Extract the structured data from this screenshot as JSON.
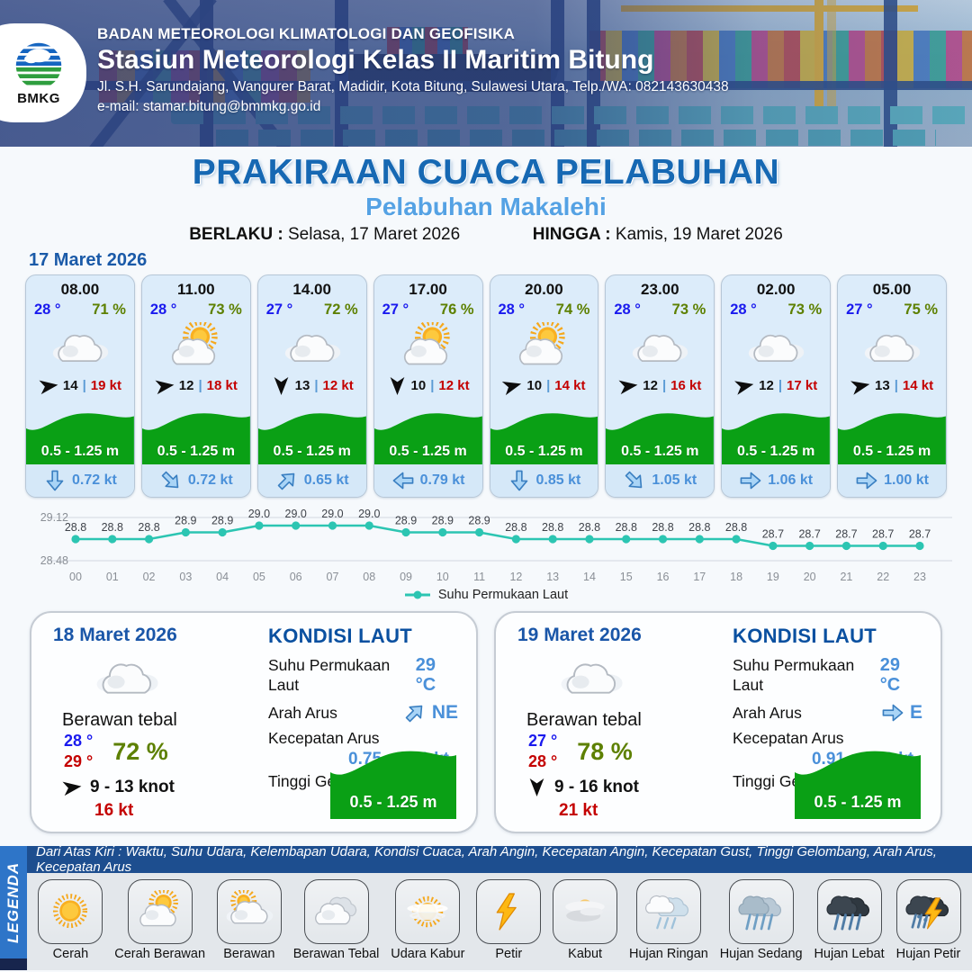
{
  "header": {
    "agency": "BADAN METEOROLOGI KLIMATOLOGI DAN GEOFISIKA",
    "station": "Stasiun Meteorologi Kelas II Maritim Bitung",
    "address": "Jl. S.H. Sarundajang, Wangurer Barat, Madidir, Kota Bitung, Sulawesi Utara, Telp./WA: 082143630438",
    "email": "e-mail: stamar.bitung@bmmkg.go.id",
    "logo_text": "BMKG"
  },
  "title": {
    "main": "PRAKIRAAN CUACA PELABUHAN",
    "subtitle": "Pelabuhan Makalehi",
    "berlaku_label": "BERLAKU :",
    "berlaku_value": "Selasa, 17 Maret 2026",
    "hingga_label": "HINGGA :",
    "hingga_value": "Kamis, 19 Maret 2026"
  },
  "forecast_date": "17 Maret 2026",
  "ui": {
    "divider": "|"
  },
  "hourly": [
    {
      "time": "08.00",
      "temp": "28 °",
      "humidity": "71 %",
      "weather": "cloud",
      "wind_speed": "14",
      "wind_gust": "19 kt",
      "wind_dir_deg": -8,
      "wave": "0.5 - 1.25 m",
      "current_speed": "0.72 kt",
      "current_dir_deg": 90
    },
    {
      "time": "11.00",
      "temp": "28 °",
      "humidity": "73 %",
      "weather": "cerah-berawan",
      "wind_speed": "12",
      "wind_gust": "18 kt",
      "wind_dir_deg": -8,
      "wave": "0.5 - 1.25 m",
      "current_speed": "0.72 kt",
      "current_dir_deg": 45
    },
    {
      "time": "14.00",
      "temp": "27 °",
      "humidity": "72 %",
      "weather": "cloud",
      "wind_speed": "13",
      "wind_gust": "12 kt",
      "wind_dir_deg": 90,
      "wave": "0.5 - 1.25 m",
      "current_speed": "0.65 kt",
      "current_dir_deg": -45
    },
    {
      "time": "17.00",
      "temp": "27 °",
      "humidity": "76 %",
      "weather": "cerah-berawan",
      "wind_speed": "10",
      "wind_gust": "12 kt",
      "wind_dir_deg": 90,
      "wave": "0.5 - 1.25 m",
      "current_speed": "0.79 kt",
      "current_dir_deg": 180
    },
    {
      "time": "20.00",
      "temp": "28 °",
      "humidity": "74 %",
      "weather": "cerah-berawan",
      "wind_speed": "10",
      "wind_gust": "14 kt",
      "wind_dir_deg": -15,
      "wave": "0.5 - 1.25 m",
      "current_speed": "0.85 kt",
      "current_dir_deg": 90
    },
    {
      "time": "23.00",
      "temp": "28 °",
      "humidity": "73 %",
      "weather": "cloud",
      "wind_speed": "12",
      "wind_gust": "16 kt",
      "wind_dir_deg": -8,
      "wave": "0.5 - 1.25 m",
      "current_speed": "1.05 kt",
      "current_dir_deg": 45
    },
    {
      "time": "02.00",
      "temp": "28 °",
      "humidity": "73 %",
      "weather": "cloud",
      "wind_speed": "12",
      "wind_gust": "17 kt",
      "wind_dir_deg": -12,
      "wave": "0.5 - 1.25 m",
      "current_speed": "1.06 kt",
      "current_dir_deg": 0
    },
    {
      "time": "05.00",
      "temp": "27 °",
      "humidity": "75 %",
      "weather": "cloud",
      "wind_speed": "13",
      "wind_gust": "14 kt",
      "wind_dir_deg": -12,
      "wave": "0.5 - 1.25 m",
      "current_speed": "1.00 kt",
      "current_dir_deg": 0
    }
  ],
  "chart_data": {
    "type": "line",
    "series_name": "Suhu Permukaan Laut",
    "x": [
      "00",
      "01",
      "02",
      "03",
      "04",
      "05",
      "06",
      "07",
      "08",
      "09",
      "10",
      "11",
      "12",
      "13",
      "14",
      "15",
      "16",
      "17",
      "18",
      "19",
      "20",
      "21",
      "22",
      "23"
    ],
    "values": [
      28.8,
      28.8,
      28.8,
      28.9,
      28.9,
      29.0,
      29.0,
      29.0,
      29.0,
      28.9,
      28.9,
      28.9,
      28.8,
      28.8,
      28.8,
      28.8,
      28.8,
      28.8,
      28.8,
      28.7,
      28.7,
      28.7,
      28.7,
      28.7
    ],
    "ylim": [
      28.48,
      29.12
    ],
    "y_ticks": [
      "29.12",
      "28.48"
    ],
    "grid": true,
    "legend_position": "bottom",
    "color": "#2cc5b2"
  },
  "days": [
    {
      "date": "18 Maret 2026",
      "condition": "Berawan tebal",
      "icon": "cloud",
      "temp_min": "28 °",
      "temp_max": "29 °",
      "humidity": "72 %",
      "wind_dir_deg": -8,
      "wind_range": "9  - 13 knot",
      "gust": "16 kt",
      "sea": {
        "title": "KONDISI LAUT",
        "sst_label": "Suhu Permukaan Laut",
        "sst_value": "29 °C",
        "current_dir_label": "Arah Arus",
        "current_dir_value": "NE",
        "current_dir_deg": -45,
        "current_speed_label": "Kecepatan Arus",
        "current_speed_value": "0.75 - 1.11 kt",
        "wave_label": "Tinggi Gelombang",
        "wave_value": "0.5 - 1.25 m"
      }
    },
    {
      "date": "19 Maret 2026",
      "condition": "Berawan tebal",
      "icon": "cloud",
      "temp_min": "27 °",
      "temp_max": "28 °",
      "humidity": "78 %",
      "wind_dir_deg": 90,
      "wind_range": "9  - 16 knot",
      "gust": "21 kt",
      "sea": {
        "title": "KONDISI LAUT",
        "sst_label": "Suhu Permukaan Laut",
        "sst_value": "29 °C",
        "current_dir_label": "Arah Arus",
        "current_dir_value": "E",
        "current_dir_deg": 0,
        "current_speed_label": "Kecepatan Arus",
        "current_speed_value": "0.91 - 1.53 kt",
        "wave_label": "Tinggi Gelombang",
        "wave_value": "0.5 - 1.25 m"
      }
    }
  ],
  "legend": {
    "sidebar": "LEGENDA",
    "description": "Dari Atas Kiri : Waktu, Suhu Udara, Kelembapan Udara, Kondisi Cuaca, Arah Angin, Kecepatan Angin, Kecepatan Gust, Tinggi Gelombang, Arah Arus, Kecepatan Arus",
    "items": [
      {
        "label": "Cerah",
        "icon": "cerah"
      },
      {
        "label": "Cerah Berawan",
        "icon": "cerah-berawan"
      },
      {
        "label": "Berawan",
        "icon": "berawan"
      },
      {
        "label": "Berawan Tebal",
        "icon": "berawan-tebal"
      },
      {
        "label": "Udara Kabur",
        "icon": "udara-kabur"
      },
      {
        "label": "Petir",
        "icon": "petir"
      },
      {
        "label": "Kabut",
        "icon": "kabut"
      },
      {
        "label": "Hujan Ringan",
        "icon": "hujan-ringan"
      },
      {
        "label": "Hujan Sedang",
        "icon": "hujan-sedang"
      },
      {
        "label": "Hujan Lebat",
        "icon": "hujan-lebat"
      },
      {
        "label": "Hujan Petir",
        "icon": "hujan-petir"
      }
    ]
  },
  "colors": {
    "header_overlay": "#293b7a",
    "title_blue": "#1668b3",
    "subtitle_blue": "#55a2e4",
    "card_bg": "#dcecfa",
    "wave_green": "#0aa015",
    "gust_red": "#c40000",
    "temp_blue": "#1a1aee",
    "humidity_green": "#5d8000",
    "current_blue": "#4a90d9",
    "chart_teal": "#2cc5b2",
    "legend_bar": "#1d4e8f",
    "legend_sidebar": "#2e75c8"
  }
}
